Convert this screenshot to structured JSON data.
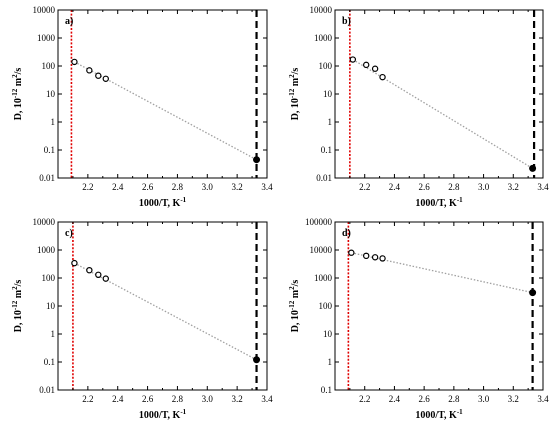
{
  "colors": {
    "axis": "#000000",
    "marker": "#000000",
    "trend": "#a0a0a0",
    "red_line": "#e00000",
    "black_line": "#000000"
  },
  "chart_data": [
    {
      "type": "scatter",
      "panel_label": "a)",
      "xlabel": "1000/T, K",
      "xlabel_exponent": "-1",
      "ylabel_main": "D, 10",
      "ylabel_exponent": "-12",
      "ylabel_unit": " m",
      "ylabel_unit_exponent": "2",
      "ylabel_tail": "/s",
      "y_scale": "log",
      "xlim": [
        2.0,
        3.4
      ],
      "ylim": [
        0.01,
        10000
      ],
      "x_ticks": [
        2.2,
        2.4,
        2.6,
        2.8,
        3.0,
        3.2,
        3.4
      ],
      "x_tick_labels": [
        "2.2",
        "2.4",
        "2.6",
        "2.8",
        "3.0",
        "3.2",
        "3.4"
      ],
      "y_ticks": [
        0.01,
        0.1,
        1,
        10,
        100,
        1000,
        10000
      ],
      "y_tick_labels": [
        "0.01",
        "0.1",
        "1",
        "10",
        "100",
        "1000",
        "10000"
      ],
      "open_points": [
        {
          "x": 2.11,
          "y": 140
        },
        {
          "x": 2.21,
          "y": 70
        },
        {
          "x": 2.27,
          "y": 45
        },
        {
          "x": 2.32,
          "y": 35
        }
      ],
      "filled_points": [
        {
          "x": 3.33,
          "y": 0.045
        }
      ],
      "trend_line": [
        {
          "x": 2.11,
          "y": 140
        },
        {
          "x": 3.33,
          "y": 0.045
        }
      ],
      "red_vline_x": 2.09,
      "black_vline_x": 3.33
    },
    {
      "type": "scatter",
      "panel_label": "b)",
      "xlabel": "1000/T, K",
      "xlabel_exponent": "-1",
      "ylabel_main": "D, 10",
      "ylabel_exponent": "-12",
      "ylabel_unit": " m",
      "ylabel_unit_exponent": "2",
      "ylabel_tail": "/s",
      "y_scale": "log",
      "xlim": [
        2.0,
        3.4
      ],
      "ylim": [
        0.01,
        10000
      ],
      "x_ticks": [
        2.2,
        2.4,
        2.6,
        2.8,
        3.0,
        3.2,
        3.4
      ],
      "x_tick_labels": [
        "2.2",
        "2.4",
        "2.6",
        "2.8",
        "3.0",
        "3.2",
        "3.4"
      ],
      "y_ticks": [
        0.01,
        0.1,
        1,
        10,
        100,
        1000,
        10000
      ],
      "y_tick_labels": [
        "0.01",
        "0.1",
        "1",
        "10",
        "100",
        "1000",
        "10000"
      ],
      "open_points": [
        {
          "x": 2.12,
          "y": 170
        },
        {
          "x": 2.21,
          "y": 110
        },
        {
          "x": 2.27,
          "y": 80
        },
        {
          "x": 2.32,
          "y": 40
        }
      ],
      "filled_points": [
        {
          "x": 3.33,
          "y": 0.022
        }
      ],
      "trend_line": [
        {
          "x": 2.12,
          "y": 170
        },
        {
          "x": 3.33,
          "y": 0.022
        }
      ],
      "red_vline_x": 2.1,
      "black_vline_x": 3.34
    },
    {
      "type": "scatter",
      "panel_label": "c)",
      "xlabel": "1000/T, K",
      "xlabel_exponent": "-1",
      "ylabel_main": "D, 10",
      "ylabel_exponent": "-12",
      "ylabel_unit": " m",
      "ylabel_unit_exponent": "2",
      "ylabel_tail": "/s",
      "y_scale": "log",
      "xlim": [
        2.0,
        3.4
      ],
      "ylim": [
        0.01,
        10000
      ],
      "x_ticks": [
        2.2,
        2.4,
        2.6,
        2.8,
        3.0,
        3.2,
        3.4
      ],
      "x_tick_labels": [
        "2.2",
        "2.4",
        "2.6",
        "2.8",
        "3.0",
        "3.2",
        "3.4"
      ],
      "y_ticks": [
        0.01,
        0.1,
        1,
        10,
        100,
        1000,
        10000
      ],
      "y_tick_labels": [
        "0.01",
        "0.1",
        "1",
        "10",
        "100",
        "1000",
        "10000"
      ],
      "open_points": [
        {
          "x": 2.11,
          "y": 340
        },
        {
          "x": 2.21,
          "y": 190
        },
        {
          "x": 2.27,
          "y": 130
        },
        {
          "x": 2.32,
          "y": 95
        }
      ],
      "filled_points": [
        {
          "x": 3.33,
          "y": 0.12
        }
      ],
      "trend_line": [
        {
          "x": 2.11,
          "y": 340
        },
        {
          "x": 3.33,
          "y": 0.12
        }
      ],
      "red_vline_x": 2.1,
      "black_vline_x": 3.33
    },
    {
      "type": "scatter",
      "panel_label": "d)",
      "xlabel": "1000/T, K",
      "xlabel_exponent": "-1",
      "ylabel_main": "D, 10",
      "ylabel_exponent": "-12",
      "ylabel_unit": " m",
      "ylabel_unit_exponent": "2",
      "ylabel_tail": "/s",
      "y_scale": "log",
      "xlim": [
        2.0,
        3.4
      ],
      "ylim": [
        0.1,
        100000
      ],
      "x_ticks": [
        2.2,
        2.4,
        2.6,
        2.8,
        3.0,
        3.2,
        3.4
      ],
      "x_tick_labels": [
        "2.2",
        "2.4",
        "2.6",
        "2.8",
        "3.0",
        "3.2",
        "3.4"
      ],
      "y_ticks": [
        0.1,
        1,
        10,
        100,
        1000,
        10000,
        100000
      ],
      "y_tick_labels": [
        "0.1",
        "1",
        "10",
        "100",
        "1000",
        "10000",
        "100000"
      ],
      "open_points": [
        {
          "x": 2.11,
          "y": 8000
        },
        {
          "x": 2.21,
          "y": 6200
        },
        {
          "x": 2.27,
          "y": 5500
        },
        {
          "x": 2.32,
          "y": 5000
        }
      ],
      "filled_points": [
        {
          "x": 3.33,
          "y": 300
        }
      ],
      "trend_line": [
        {
          "x": 2.11,
          "y": 8000
        },
        {
          "x": 3.33,
          "y": 300
        }
      ],
      "red_vline_x": 2.09,
      "black_vline_x": 3.33
    }
  ]
}
